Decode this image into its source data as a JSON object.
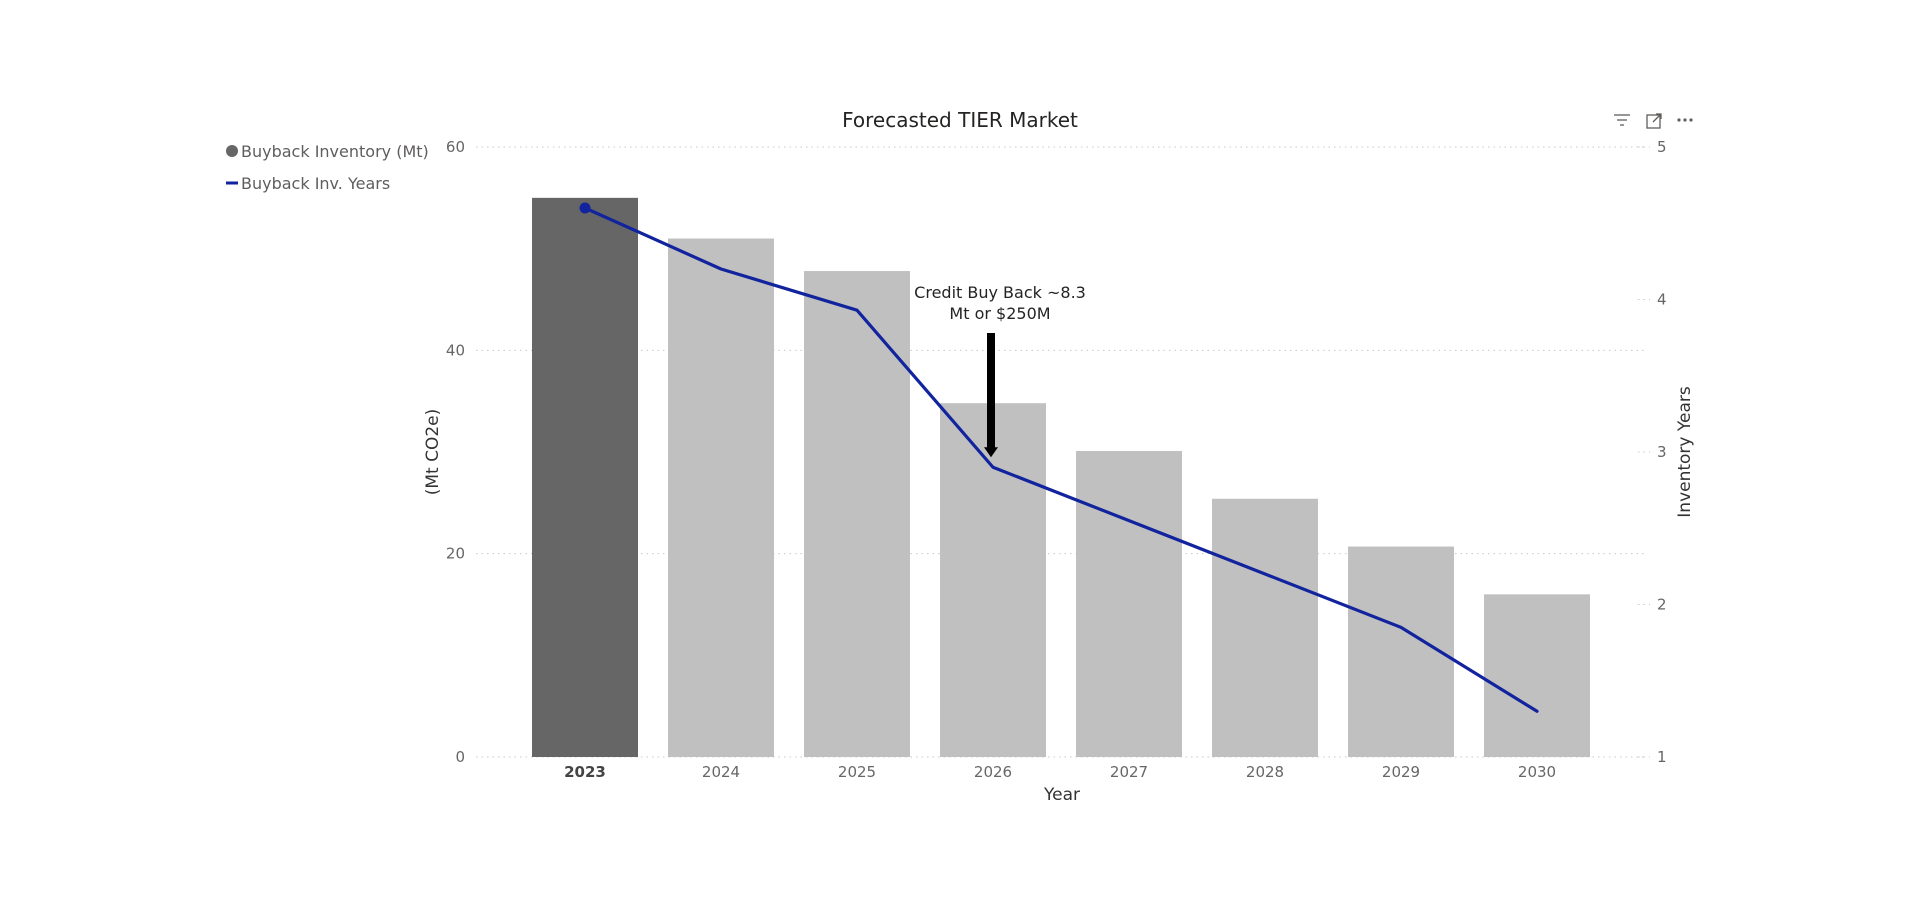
{
  "chart_data": {
    "type": "bar",
    "title": "Forecasted TIER Market",
    "categories": [
      "2023",
      "2024",
      "2025",
      "2026",
      "2027",
      "2028",
      "2029",
      "2030"
    ],
    "highlight_category": "2023",
    "series": [
      {
        "name": "Buyback Inventory (Mt)",
        "type": "bar",
        "axis": "left",
        "values": [
          55,
          51,
          47.8,
          34.8,
          30.1,
          25.4,
          20.7,
          16
        ]
      },
      {
        "name": "Buyback Inv. Years",
        "type": "line",
        "axis": "right",
        "values": [
          4.6,
          4.2,
          3.93,
          2.9,
          2.55,
          2.2,
          1.85,
          1.3
        ]
      }
    ],
    "xlabel": "Year",
    "ylabel": "(Mt CO2e)",
    "y2label": "Inventory Years",
    "ylim": [
      0,
      60
    ],
    "y2lim": [
      1,
      5
    ],
    "yticks": [
      "0",
      "20",
      "40",
      "60"
    ],
    "y2ticks": [
      "1",
      "2",
      "3",
      "4",
      "5"
    ],
    "grid": true,
    "legend_position": "top-left",
    "annotation": {
      "lines": [
        "Credit Buy Back ~8.3",
        "Mt or $250M"
      ],
      "points_to": "2026"
    }
  },
  "colors": {
    "bar_highlight": "#666666",
    "bar": "#c0c0c0",
    "line": "#12239e",
    "grid": "#c8c8c8",
    "arrow": "#000000"
  },
  "toolbar": {
    "filter_icon": "filter-icon",
    "focus_icon": "focus-mode-icon",
    "more_icon": "more-options-icon"
  }
}
